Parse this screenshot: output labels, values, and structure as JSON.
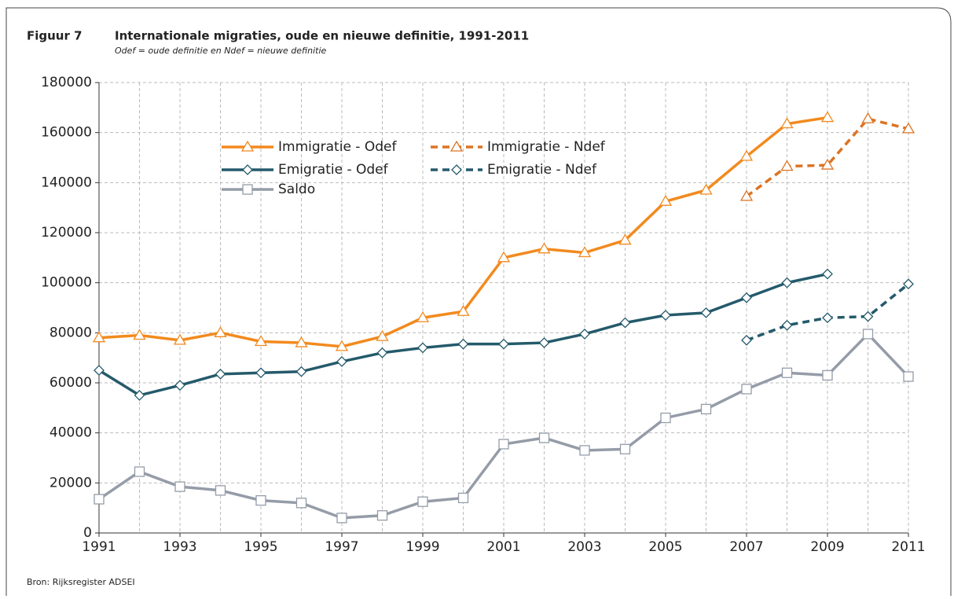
{
  "chart_data": {
    "type": "line",
    "figure_label": "Figuur 7",
    "title": "Internationale migraties, oude en nieuwe definitie, 1991-2011",
    "subtitle": "Odef = oude definitie  en Ndef = nieuwe definitie",
    "source": "Bron: Rijksregister ADSEI",
    "x": [
      1991,
      1992,
      1993,
      1994,
      1995,
      1996,
      1997,
      1998,
      1999,
      2000,
      2001,
      2002,
      2003,
      2004,
      2005,
      2006,
      2007,
      2008,
      2009,
      2010,
      2011
    ],
    "xlim": [
      1991,
      2011
    ],
    "xticks": [
      1991,
      1993,
      1995,
      1997,
      1999,
      2001,
      2003,
      2005,
      2007,
      2009,
      2011
    ],
    "ylim": [
      0,
      180000
    ],
    "yticks": [
      0,
      20000,
      40000,
      60000,
      80000,
      100000,
      120000,
      140000,
      160000,
      180000
    ],
    "grid": true,
    "series": [
      {
        "name": "Immigratie - Odef",
        "color": "#f28a1e",
        "marker": "triangle",
        "dashed": false,
        "values": [
          78000,
          79000,
          77000,
          80000,
          76500,
          76000,
          74500,
          78500,
          86000,
          88500,
          110000,
          113500,
          112000,
          117000,
          132500,
          137000,
          150500,
          163500,
          166000,
          null,
          null
        ]
      },
      {
        "name": "Immigratie - Ndef",
        "color": "#dc7424",
        "marker": "triangle",
        "dashed": true,
        "values": [
          null,
          null,
          null,
          null,
          null,
          null,
          null,
          null,
          null,
          null,
          null,
          null,
          null,
          null,
          null,
          null,
          134500,
          146500,
          147000,
          165500,
          161500
        ]
      },
      {
        "name": "Emigratie - Odef",
        "color": "#245a6b",
        "marker": "diamond",
        "dashed": false,
        "values": [
          65000,
          55000,
          59000,
          63500,
          64000,
          64500,
          68500,
          72000,
          74000,
          75500,
          75500,
          76000,
          79500,
          84000,
          87000,
          88000,
          94000,
          100000,
          103500,
          null,
          null
        ]
      },
      {
        "name": "Emigratie - Ndef",
        "color": "#245a6b",
        "marker": "diamond",
        "dashed": true,
        "values": [
          null,
          null,
          null,
          null,
          null,
          null,
          null,
          null,
          null,
          null,
          null,
          null,
          null,
          null,
          null,
          null,
          77000,
          83000,
          86000,
          86500,
          99500
        ]
      },
      {
        "name": "Saldo",
        "color": "#959ca8",
        "marker": "square",
        "dashed": false,
        "values": [
          13500,
          24500,
          18500,
          17000,
          13000,
          12000,
          6000,
          7000,
          12500,
          14000,
          35500,
          38000,
          33000,
          33500,
          46000,
          49500,
          57500,
          64000,
          63000,
          79500,
          62500
        ]
      }
    ]
  }
}
